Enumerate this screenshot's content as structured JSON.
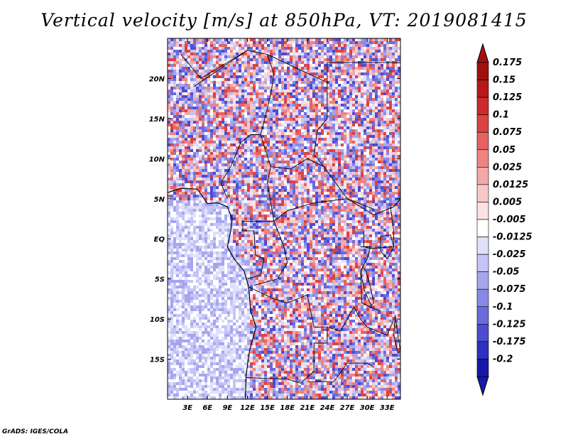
{
  "title": "Vertical velocity [m/s] at 850hPa, VT: 2019081415",
  "credit": "GrADS: IGES/COLA",
  "map": {
    "lat_ticks": [
      {
        "label": "20N",
        "lat": 20
      },
      {
        "label": "15N",
        "lat": 15
      },
      {
        "label": "10N",
        "lat": 10
      },
      {
        "label": "5N",
        "lat": 5
      },
      {
        "label": "EQ",
        "lat": 0
      },
      {
        "label": "5S",
        "lat": -5
      },
      {
        "label": "10S",
        "lat": -10
      },
      {
        "label": "15S",
        "lat": -15
      }
    ],
    "lon_ticks": [
      {
        "label": "3E",
        "lon": 3
      },
      {
        "label": "6E",
        "lon": 6
      },
      {
        "label": "9E",
        "lon": 9
      },
      {
        "label": "12E",
        "lon": 12
      },
      {
        "label": "15E",
        "lon": 15
      },
      {
        "label": "18E",
        "lon": 18
      },
      {
        "label": "21E",
        "lon": 21
      },
      {
        "label": "24E",
        "lon": 24
      },
      {
        "label": "27E",
        "lon": 27
      },
      {
        "label": "30E",
        "lon": 30
      },
      {
        "label": "33E",
        "lon": 33
      }
    ],
    "lon_range": [
      0,
      35
    ],
    "lat_range": [
      -20,
      25
    ]
  },
  "colorbar": {
    "levels": [
      {
        "label": "0.175",
        "color": "#a01010"
      },
      {
        "label": "0.15",
        "color": "#b81818"
      },
      {
        "label": "0.125",
        "color": "#cc2a2a"
      },
      {
        "label": "0.1",
        "color": "#dc4242"
      },
      {
        "label": "0.075",
        "color": "#e66262"
      },
      {
        "label": "0.05",
        "color": "#ee8484"
      },
      {
        "label": "0.025",
        "color": "#f4a8a8"
      },
      {
        "label": "0.0125",
        "color": "#f8c8c8"
      },
      {
        "label": "0.005",
        "color": "#fce2e2"
      },
      {
        "label": "-0.005",
        "color": "#ffffff"
      },
      {
        "label": "-0.0125",
        "color": "#e0e0fc"
      },
      {
        "label": "-0.025",
        "color": "#c4c4f6"
      },
      {
        "label": "-0.05",
        "color": "#a6a6ee"
      },
      {
        "label": "-0.075",
        "color": "#8888e6"
      },
      {
        "label": "-0.1",
        "color": "#6a6adc"
      },
      {
        "label": "-0.125",
        "color": "#4c4cd0"
      },
      {
        "label": "-0.175",
        "color": "#3030c0"
      },
      {
        "label": "-0.2",
        "color": "#1818a8"
      }
    ],
    "top_color": "#a01010",
    "bottom_color": "#1818a8"
  }
}
